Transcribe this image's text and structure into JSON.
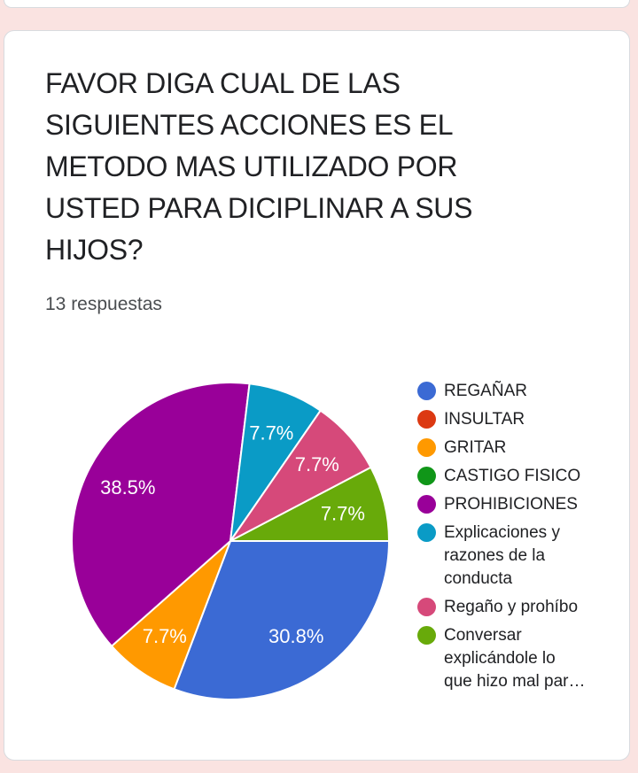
{
  "page": {
    "background_color": "#FAE3E1",
    "card_background": "#FFFFFF",
    "card_border_color": "#D8DBDF"
  },
  "question": {
    "title": "FAVOR DIGA CUAL DE LAS SIGUIENTES ACCIONES ES EL METODO MAS UTILIZADO POR USTED PARA DICIPLINAR A SUS HIJOS?",
    "title_lines": [
      "FAVOR DIGA CUAL DE LAS",
      "SIGUIENTES ACCIONES ES EL",
      "METODO MAS UTILIZADO POR",
      "USTED PARA DICIPLINAR A SUS",
      "HIJOS?"
    ],
    "responses_label": "13 respuestas",
    "responses_count": 13
  },
  "chart_data": {
    "type": "pie",
    "title": "",
    "legend_position": "right",
    "start_angle_compass_deg": 90,
    "label_color": "#FFFFFF",
    "slice_border_color": "#FFFFFF",
    "total": 13,
    "categories": [
      "REGAÑAR",
      "INSULTAR",
      "GRITAR",
      "CASTIGO FISICO",
      "PROHIBICIONES",
      "Explicaciones y razones de la conducta",
      "Regaño y prohíbo",
      "Conversar explicándole lo que hizo mal par…"
    ],
    "values": [
      4,
      0,
      1,
      0,
      5,
      1,
      1,
      1
    ],
    "colors": [
      "#3B6AD4",
      "#DC3912",
      "#FF9900",
      "#109618",
      "#990099",
      "#0A9BC6",
      "#D6497A",
      "#68AA0A"
    ],
    "slices": [
      {
        "label": "REGAÑAR",
        "value": 4,
        "percent_label": "30.8%",
        "color": "#3B6AD4"
      },
      {
        "label": "GRITAR",
        "value": 1,
        "percent_label": "7.7%",
        "color": "#FF9900"
      },
      {
        "label": "PROHIBICIONES",
        "value": 5,
        "percent_label": "38.5%",
        "color": "#990099"
      },
      {
        "label": "Explicaciones y razones de la conducta",
        "value": 1,
        "percent_label": "7.7%",
        "color": "#0A9BC6"
      },
      {
        "label": "Regaño y prohíbo",
        "value": 1,
        "percent_label": "7.7%",
        "color": "#D6497A"
      },
      {
        "label": "Conversar explicándole lo que hizo mal par…",
        "value": 1,
        "percent_label": "7.7%",
        "color": "#68AA0A"
      }
    ],
    "legend": [
      {
        "label": "REGAÑAR",
        "color": "#3B6AD4",
        "lines": [
          "REGAÑAR"
        ]
      },
      {
        "label": "INSULTAR",
        "color": "#DC3912",
        "lines": [
          "INSULTAR"
        ]
      },
      {
        "label": "GRITAR",
        "color": "#FF9900",
        "lines": [
          "GRITAR"
        ]
      },
      {
        "label": "CASTIGO FISICO",
        "color": "#109618",
        "lines": [
          "CASTIGO FISICO"
        ]
      },
      {
        "label": "PROHIBICIONES",
        "color": "#990099",
        "lines": [
          "PROHIBICIONES"
        ]
      },
      {
        "label": "Explicaciones y razones de la conducta",
        "color": "#0A9BC6",
        "lines": [
          "Explicaciones y",
          "razones de la",
          "conducta"
        ]
      },
      {
        "label": "Regaño y prohíbo",
        "color": "#D6497A",
        "lines": [
          "Regaño y prohíbo"
        ]
      },
      {
        "label": "Conversar explicándole lo que hizo mal par…",
        "color": "#68AA0A",
        "lines": [
          "Conversar",
          "explicándole lo",
          "que hizo mal par…"
        ]
      }
    ]
  }
}
